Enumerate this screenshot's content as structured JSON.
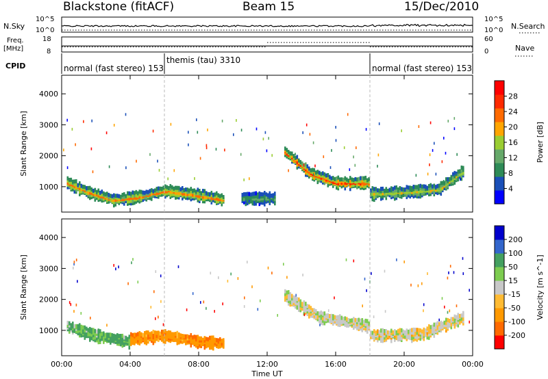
{
  "header": {
    "station": "Blackstone (fitACF)",
    "beam": "Beam 15",
    "date": "15/Dec/2010"
  },
  "labels": {
    "nsky": "N.Sky",
    "nsearch": "N.Search",
    "freq": "Freq.",
    "freq_unit": "[MHz]",
    "nave": "Nave",
    "cpid": "CPID",
    "nsky_top": "10^5",
    "nsky_bottom": "10^0",
    "freq_top": "18",
    "freq_bottom": "8",
    "nave_top": "60",
    "nave_bottom": "0"
  },
  "colors": {
    "power": [
      "#0000ff",
      "#1a4fb8",
      "#2e8b57",
      "#66a96a",
      "#9acd32",
      "#ffa500",
      "#ff6a00",
      "#ff2a00",
      "#ff0000"
    ],
    "velocity": [
      "#ff0000",
      "#ff6a00",
      "#ff9900",
      "#ffbb33",
      "#c8c8c8",
      "#7dcc50",
      "#44a060",
      "#3366cc",
      "#0000cc"
    ]
  },
  "chart_data": [
    {
      "type": "table",
      "title": "CPID",
      "segments": [
        {
          "label": "normal (fast stereo) 153",
          "start_hour": 0,
          "end_hour": 6
        },
        {
          "label": "themis (tau) 3310",
          "start_hour": 6,
          "end_hour": 18
        },
        {
          "label": "normal (fast stereo) 153",
          "start_hour": 18,
          "end_hour": 24
        }
      ],
      "nave_level": [
        {
          "start_hour": 0,
          "end_hour": 12,
          "value": 20
        },
        {
          "start_hour": 12,
          "end_hour": 18,
          "value": 38
        },
        {
          "start_hour": 18,
          "end_hour": 24,
          "value": 20
        }
      ],
      "freq_level": [
        {
          "start_hour": 0,
          "end_hour": 24,
          "value": 12
        }
      ]
    },
    {
      "type": "heatmap",
      "title": "Power",
      "xlabel": "Time UT",
      "ylabel": "Slant Range [km]",
      "colorbar_label": "Power [dB]",
      "colorbar_ticks": [
        4,
        8,
        12,
        16,
        20,
        24,
        28
      ],
      "xlim": [
        0,
        24
      ],
      "ylim": [
        180,
        4600
      ],
      "x_ticks": [
        "00:00",
        "04:00",
        "08:00",
        "12:00",
        "16:00",
        "20:00",
        "00:00"
      ],
      "y_ticks": [
        1000,
        2000,
        3000,
        4000
      ],
      "regions": [
        {
          "t0": 0.3,
          "t1": 9.5,
          "r_path": [
            [
              0.3,
              1200
            ],
            [
              1.5,
              900
            ],
            [
              3,
              650
            ],
            [
              4.5,
              750
            ],
            [
              6,
              950
            ],
            [
              8,
              800
            ],
            [
              9.5,
              650
            ]
          ],
          "level": 20
        },
        {
          "t0": 10.5,
          "t1": 12.5,
          "r_path": [
            [
              10.5,
              700
            ],
            [
              12.5,
              700
            ]
          ],
          "level": 8
        },
        {
          "t0": 13,
          "t1": 18,
          "r_path": [
            [
              13,
              2200
            ],
            [
              14.5,
              1500
            ],
            [
              16,
              1200
            ],
            [
              18,
              1200
            ]
          ],
          "level": 24
        },
        {
          "t0": 18,
          "t1": 23.5,
          "r_path": [
            [
              18,
              850
            ],
            [
              20,
              900
            ],
            [
              22,
              1000
            ],
            [
              23.5,
              1600
            ]
          ],
          "level": 14
        }
      ]
    },
    {
      "type": "heatmap",
      "title": "Velocity",
      "xlabel": "Time UT",
      "ylabel": "Slant Range [km]",
      "colorbar_label": "Velocity [m s^-1]",
      "colorbar_ticks": [
        -200,
        -100,
        -50,
        -15,
        15,
        50,
        100,
        200
      ],
      "xlim": [
        0,
        24
      ],
      "ylim": [
        180,
        4600
      ],
      "x_ticks": [
        "00:00",
        "04:00",
        "08:00",
        "12:00",
        "16:00",
        "20:00",
        "00:00"
      ],
      "y_ticks": [
        1000,
        2000,
        3000,
        4000
      ],
      "regions": [
        {
          "t0": 0.3,
          "t1": 4,
          "r_path": [
            [
              0.3,
              1200
            ],
            [
              2,
              900
            ],
            [
              4,
              700
            ]
          ],
          "value": 40
        },
        {
          "t0": 4,
          "t1": 9.5,
          "r_path": [
            [
              4,
              800
            ],
            [
              6,
              900
            ],
            [
              8,
              700
            ],
            [
              9.5,
              650
            ]
          ],
          "value": -60
        },
        {
          "t0": 13,
          "t1": 18,
          "r_path": [
            [
              13,
              2200
            ],
            [
              15,
              1500
            ],
            [
              18,
              1200
            ]
          ],
          "value": 0
        },
        {
          "t0": 18,
          "t1": 23.5,
          "r_path": [
            [
              18,
              900
            ],
            [
              21,
              950
            ],
            [
              23.5,
              1500
            ]
          ],
          "value": -5
        }
      ]
    }
  ]
}
